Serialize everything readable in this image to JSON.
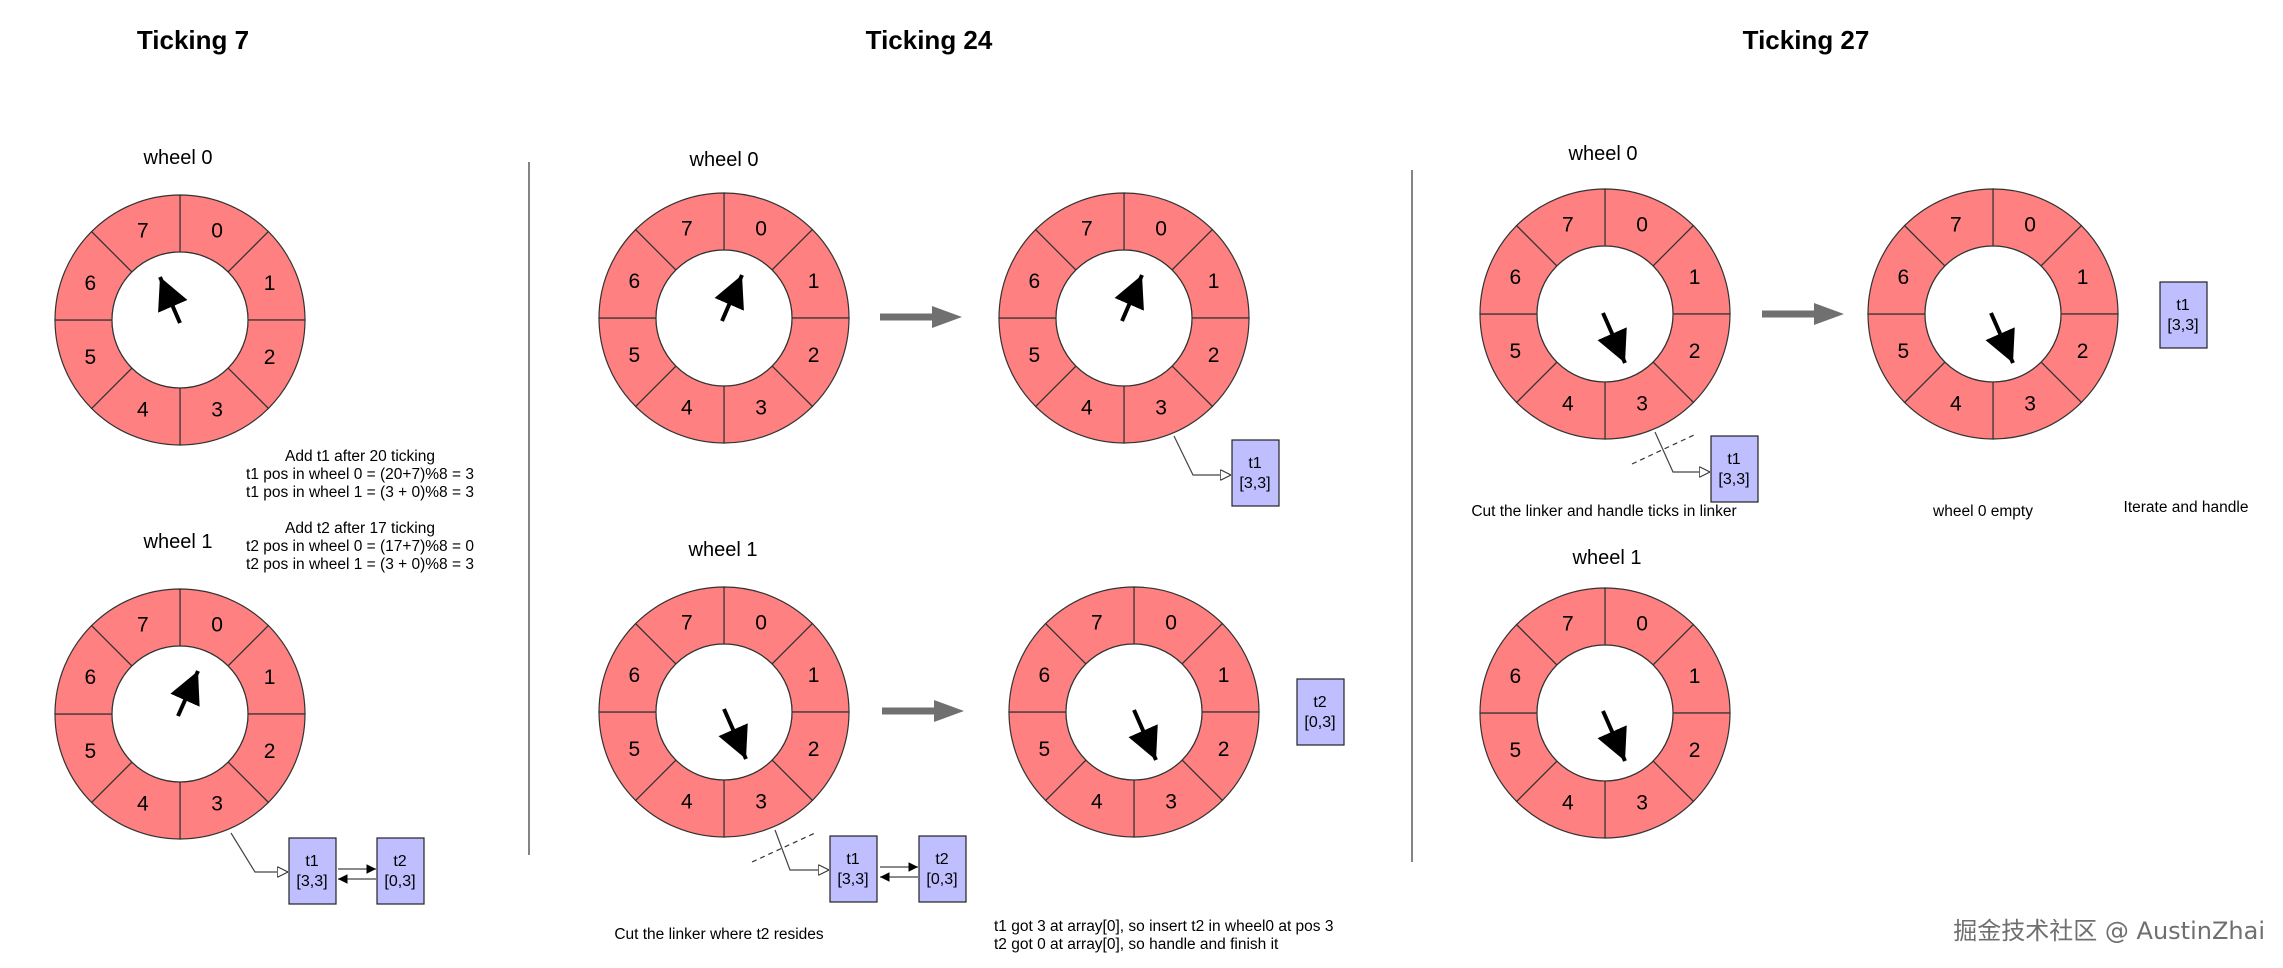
{
  "sections": [
    {
      "title": "Ticking 7"
    },
    {
      "title": "Ticking 24"
    },
    {
      "title": "Ticking 27"
    }
  ],
  "slots": [
    "0",
    "1",
    "2",
    "3",
    "4",
    "5",
    "6",
    "7"
  ],
  "wheel_labels": {
    "wheel0": "wheel 0",
    "wheel1": "wheel 1"
  },
  "tasks": {
    "t1": {
      "name": "t1",
      "pos": "[3,3]"
    },
    "t2": {
      "name": "t2",
      "pos": "[0,3]"
    }
  },
  "notes": {
    "add_t1": [
      "Add t1 after 20 ticking",
      "t1 pos in wheel 0 = (20+7)%8 = 3",
      "t1 pos in wheel 1 = (3 + 0)%8 = 3"
    ],
    "add_t2": [
      "Add t2 after 17 ticking",
      "t2 pos in wheel 0 = (17+7)%8 = 0",
      "t2 pos in wheel 1 = (3 + 0)%8 = 3"
    ],
    "cut_t2": "Cut the linker where t2 resides",
    "t1_got": "t1 got 3 at array[0], so insert t2 in wheel0 at pos 3",
    "t2_got": "t2 got 0 at array[0], so handle and finish it",
    "cut_handle": "Cut the linker and handle ticks in linker",
    "wheel0_empty": "wheel 0 empty",
    "iterate": "Iterate and handle"
  },
  "watermark": "掘金技术社区 @ AustinZhai",
  "colors": {
    "slot": "#ff8080",
    "task_box": "#bfbfff",
    "arrow": "#707070"
  }
}
